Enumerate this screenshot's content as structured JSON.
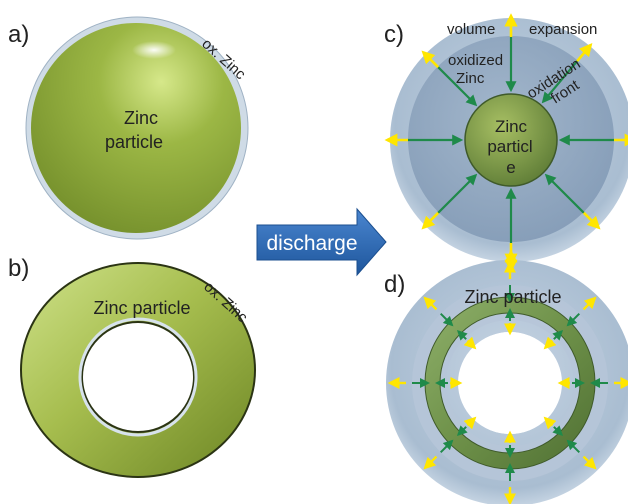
{
  "panels": {
    "a": {
      "label": "a)",
      "core_line1": "Zinc",
      "core_line2": "particle",
      "shell": "ox. Zinc"
    },
    "b": {
      "label": "b)",
      "core": "Zinc particle",
      "shell": "ox. Zinc"
    },
    "c": {
      "label": "c)",
      "volume": "volume",
      "expansion": "expansion",
      "oxidized_line1": "oxidized",
      "oxidized_line2": "Zinc",
      "front_line1": "oxidation",
      "front_line2": "front",
      "core_line1": "Zinc",
      "core_line2": "particl",
      "core_line3": "e"
    },
    "d": {
      "label": "d)",
      "core": "Zinc particle"
    }
  },
  "process_arrow": {
    "label": "discharge"
  },
  "colors": {
    "zinc": "#8faa3c",
    "oxide": "#b8c8da",
    "arrow_yellow": "#ffee00",
    "arrow_green": "#1f8a4a",
    "discharge": "#2f6db8"
  }
}
